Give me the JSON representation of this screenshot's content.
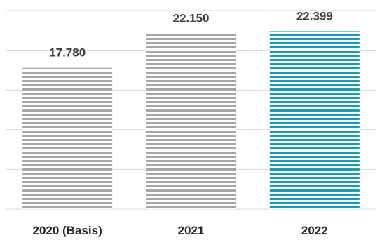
{
  "chart_data": {
    "type": "bar",
    "categories": [
      "2020 (Basis)",
      "2021",
      "2022"
    ],
    "values": [
      17780,
      22150,
      22399
    ],
    "value_labels": [
      "17.780",
      "22.150",
      "22.399"
    ],
    "title": "",
    "xlabel": "",
    "ylabel": "",
    "ylim": [
      0,
      25000
    ],
    "grid": true,
    "legend": "none",
    "colors": {
      "default_bar": "#a6a6a6",
      "highlight_bar": "#1a9bb0",
      "stripe_gap": "#ffffff",
      "grid": "#d9d9d9",
      "value_text": "#404040",
      "category_text": "#262626"
    },
    "highlight_index": 2
  }
}
